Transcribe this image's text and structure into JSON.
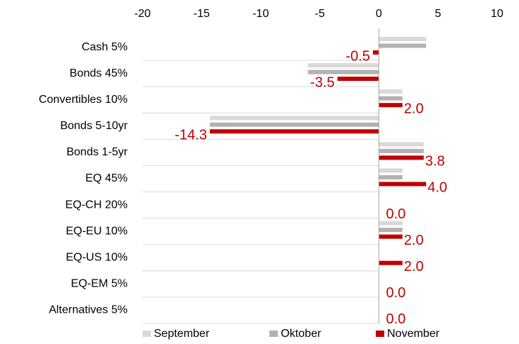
{
  "chart_data": {
    "type": "bar",
    "orientation": "horizontal",
    "categories": [
      "Cash 5%",
      "Bonds 45%",
      "Convertibles 10%",
      "Bonds 5-10yr",
      "Bonds 1-5yr",
      "EQ 45%",
      "EQ-CH 20%",
      "EQ-EU 10%",
      "EQ-US 10%",
      "EQ-EM 5%",
      "Alternatives 5%"
    ],
    "series": [
      {
        "name": "September",
        "color": "#d9d9d9",
        "values": [
          4,
          -6,
          2,
          -14.3,
          3.8,
          2,
          0,
          2,
          0,
          0,
          0
        ]
      },
      {
        "name": "Oktober",
        "color": "#b2b2b2",
        "values": [
          4,
          -6,
          2,
          -14.3,
          3.8,
          2,
          0,
          2,
          0,
          0,
          0
        ]
      },
      {
        "name": "November",
        "color": "#c00000",
        "values": [
          -0.5,
          -3.5,
          2,
          -14.3,
          3.8,
          4,
          0,
          2,
          2,
          0,
          0
        ],
        "value_labels": [
          "-0.5",
          "-3.5",
          "2.0",
          "-14.3",
          "3.8",
          "4.0",
          "0.0",
          "2.0",
          "2.0",
          "0.0",
          "0.0"
        ]
      }
    ],
    "xlim": [
      -20,
      10
    ],
    "xticks": [
      -20,
      -15,
      -10,
      -5,
      0,
      5,
      10
    ],
    "legend": "bottom"
  }
}
